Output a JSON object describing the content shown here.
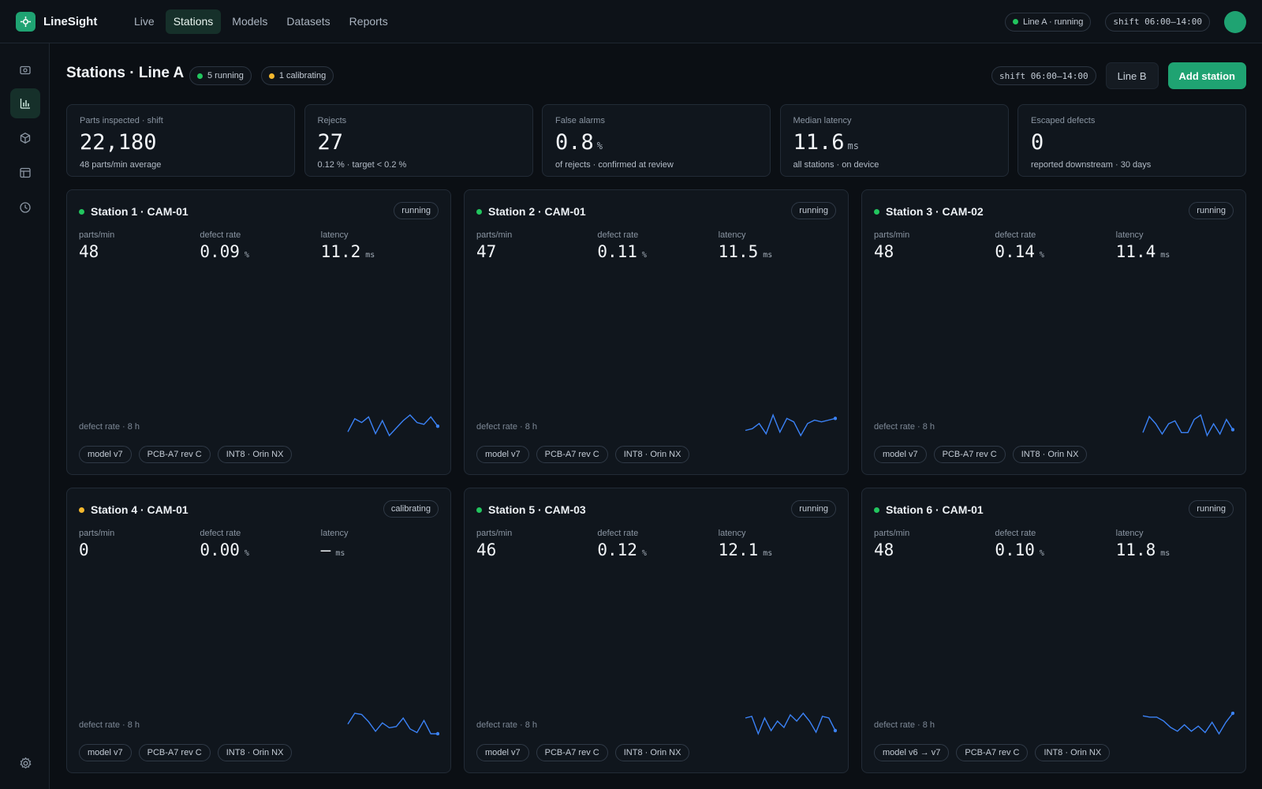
{
  "app": {
    "name": "LineSight"
  },
  "nav": [
    "Live",
    "Stations",
    "Models",
    "Datasets",
    "Reports"
  ],
  "nav_active": 1,
  "topbar": {
    "line_status": "Line A · running",
    "shift": "shift 06:00–14:00"
  },
  "sidebar": {
    "icons": [
      "camera-icon",
      "bar-chart-icon",
      "cube-icon",
      "layout-icon",
      "history-icon"
    ],
    "active": 1,
    "bottom_icon": "gear-icon"
  },
  "page": {
    "title": "Stations · Line A",
    "running_badge": "5 running",
    "calibrating_badge": "1 calibrating",
    "shift": "shift 06:00–14:00",
    "secondary_button": "Line B",
    "primary_button": "Add station"
  },
  "stats": [
    {
      "label": "Parts inspected · shift",
      "value": "22,180",
      "unit": "",
      "sub": "48 parts/min average"
    },
    {
      "label": "Rejects",
      "value": "27",
      "unit": "",
      "sub": "0.12 % · target < 0.2 %"
    },
    {
      "label": "False alarms",
      "value": "0.8",
      "unit": "%",
      "sub": "of rejects · confirmed at review"
    },
    {
      "label": "Median latency",
      "value": "11.6",
      "unit": "ms",
      "sub": "all stations · on device"
    },
    {
      "label": "Escaped defects",
      "value": "0",
      "unit": "",
      "sub": "reported downstream · 30 days"
    }
  ],
  "colors": {
    "accent": "#1fa372",
    "running": "#22c55e",
    "calibrating": "#f5b82e",
    "spark": "#3b82f6"
  },
  "station_labels": {
    "parts": "parts/min",
    "defect": "defect rate",
    "latency": "latency",
    "defect_unit": "%",
    "latency_unit": "ms",
    "spark": "defect rate · 8 h"
  },
  "stations": [
    {
      "name": "Station 1 · CAM-01",
      "status": "running",
      "parts": "48",
      "defect": "0.09",
      "latency": "11.2",
      "tags": [
        "model v7",
        "PCB-A7 rev C",
        "INT8 · Orin NX"
      ],
      "spark": [
        4,
        11,
        9,
        12,
        3,
        10,
        2,
        6,
        10,
        13,
        9,
        8,
        12,
        7
      ]
    },
    {
      "name": "Station 2 · CAM-01",
      "status": "running",
      "parts": "47",
      "defect": "0.11",
      "latency": "11.5",
      "tags": [
        "model v7",
        "PCB-A7 rev C",
        "INT8 · Orin NX"
      ],
      "spark": [
        5,
        6,
        9,
        3,
        14,
        4,
        12,
        10,
        2,
        9,
        11,
        10,
        11,
        12
      ]
    },
    {
      "name": "Station 3 · CAM-02",
      "status": "running",
      "parts": "48",
      "defect": "0.14",
      "latency": "11.4",
      "tags": [
        "model v7",
        "PCB-A7 rev C",
        "INT8 · Orin NX"
      ],
      "spark": [
        4,
        15,
        10,
        3,
        10,
        12,
        4,
        4,
        13,
        16,
        2,
        10,
        3,
        13,
        6
      ]
    },
    {
      "name": "Station 4 · CAM-01",
      "status": "calibrating",
      "parts": "0",
      "defect": "0.00",
      "latency": "—",
      "tags": [
        "model v7",
        "PCB-A7 rev C",
        "INT8 · Orin NX"
      ],
      "spark": [
        10,
        19,
        18,
        12,
        4,
        11,
        7,
        8,
        15,
        6,
        3,
        13,
        2,
        2
      ]
    },
    {
      "name": "Station 5 · CAM-03",
      "status": "running",
      "parts": "46",
      "defect": "0.12",
      "latency": "12.1",
      "tags": [
        "model v7",
        "PCB-A7 rev C",
        "INT8 · Orin NX"
      ],
      "spark": [
        12,
        13,
        2,
        12,
        4,
        10,
        6,
        14,
        10,
        15,
        10,
        3,
        13,
        12,
        4
      ]
    },
    {
      "name": "Station 6 · CAM-01",
      "status": "running",
      "parts": "48",
      "defect": "0.10",
      "latency": "11.8",
      "tags": [
        "model v6 → v7",
        "PCB-A7 rev C",
        "INT8 · Orin NX"
      ],
      "spark": [
        15,
        14,
        14,
        11,
        6,
        3,
        8,
        3,
        7,
        2,
        10,
        1,
        10,
        17
      ]
    }
  ]
}
